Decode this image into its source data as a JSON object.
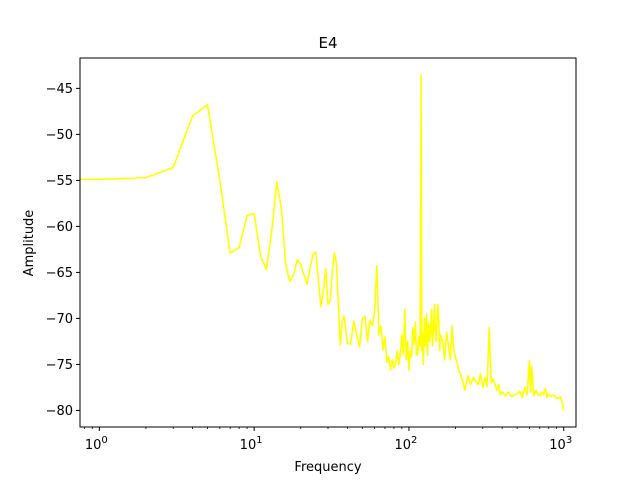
{
  "chart_data": {
    "type": "line",
    "title": "E4",
    "xlabel": "Frequency",
    "ylabel": "Amplitude",
    "xscale": "log",
    "xlim": [
      0.75,
      1200
    ],
    "ylim": [
      -81.8,
      -41.7
    ],
    "grid": false,
    "color": "#ffff00",
    "xticks": [
      {
        "value": 1,
        "label": "10",
        "exp": "0"
      },
      {
        "value": 10,
        "label": "10",
        "exp": "1"
      },
      {
        "value": 100,
        "label": "10",
        "exp": "2"
      },
      {
        "value": 1000,
        "label": "10",
        "exp": "3"
      }
    ],
    "yticks": [
      {
        "value": -45,
        "label": "−45"
      },
      {
        "value": -50,
        "label": "−50"
      },
      {
        "value": -55,
        "label": "−55"
      },
      {
        "value": -60,
        "label": "−60"
      },
      {
        "value": -65,
        "label": "−65"
      },
      {
        "value": -70,
        "label": "−70"
      },
      {
        "value": -75,
        "label": "−75"
      },
      {
        "value": -80,
        "label": "−80"
      }
    ],
    "series": [
      {
        "points": [
          [
            0.75,
            -54.9
          ],
          [
            1,
            -54.9
          ],
          [
            2,
            -54.7
          ],
          [
            3,
            -53.6
          ],
          [
            4,
            -48.0
          ],
          [
            5,
            -46.8
          ],
          [
            6,
            -55.0
          ],
          [
            7,
            -62.9
          ],
          [
            8,
            -62.3
          ],
          [
            9,
            -58.8
          ],
          [
            10,
            -58.6
          ],
          [
            11,
            -63.2
          ],
          [
            12,
            -64.7
          ],
          [
            13,
            -60.5
          ],
          [
            14,
            -55.2
          ],
          [
            15,
            -58.0
          ],
          [
            16,
            -64.2
          ],
          [
            17,
            -66.0
          ],
          [
            18,
            -65.2
          ],
          [
            19,
            -63.6
          ],
          [
            20,
            -64.2
          ],
          [
            21,
            -65.3
          ],
          [
            22,
            -66.3
          ],
          [
            23,
            -64.5
          ],
          [
            24,
            -63.0
          ],
          [
            25,
            -62.8
          ],
          [
            26,
            -65.9
          ],
          [
            27,
            -68.7
          ],
          [
            28,
            -67.0
          ],
          [
            29,
            -64.6
          ],
          [
            30,
            -68.5
          ],
          [
            31,
            -68.0
          ],
          [
            32,
            -65.0
          ],
          [
            33,
            -62.9
          ],
          [
            34,
            -64.0
          ],
          [
            35,
            -68.5
          ],
          [
            36,
            -72.9
          ],
          [
            37,
            -70.4
          ],
          [
            38,
            -69.7
          ],
          [
            39,
            -71.0
          ],
          [
            40,
            -72.7
          ],
          [
            42,
            -72.8
          ],
          [
            44,
            -70.3
          ],
          [
            46,
            -71.8
          ],
          [
            48,
            -73.1
          ],
          [
            50,
            -70.0
          ],
          [
            52,
            -69.8
          ],
          [
            54,
            -72.5
          ],
          [
            56,
            -70.2
          ],
          [
            58,
            -70.8
          ],
          [
            60,
            -69.3
          ],
          [
            62,
            -64.3
          ],
          [
            64,
            -71.8
          ],
          [
            66,
            -70.8
          ],
          [
            68,
            -73.4
          ],
          [
            70,
            -72.0
          ],
          [
            72,
            -74.8
          ],
          [
            74,
            -74.1
          ],
          [
            76,
            -75.6
          ],
          [
            78,
            -74.5
          ],
          [
            80,
            -75.4
          ],
          [
            82,
            -74.9
          ],
          [
            84,
            -73.5
          ],
          [
            86,
            -75.0
          ],
          [
            88,
            -73.8
          ],
          [
            90,
            -71.8
          ],
          [
            92,
            -73.9
          ],
          [
            94,
            -69.0
          ],
          [
            96,
            -74.5
          ],
          [
            98,
            -72.5
          ],
          [
            100,
            -75.6
          ],
          [
            102,
            -73.5
          ],
          [
            104,
            -74.2
          ],
          [
            106,
            -71.0
          ],
          [
            108,
            -72.8
          ],
          [
            110,
            -70.4
          ],
          [
            112,
            -74.0
          ],
          [
            114,
            -73.9
          ],
          [
            116,
            -72.0
          ],
          [
            118,
            -73.0
          ],
          [
            120,
            -43.5
          ],
          [
            121,
            -73.5
          ],
          [
            122,
            -71.5
          ],
          [
            124,
            -75.0
          ],
          [
            126,
            -70.0
          ],
          [
            128,
            -73.0
          ],
          [
            130,
            -69.5
          ],
          [
            132,
            -74.0
          ],
          [
            134,
            -70.5
          ],
          [
            136,
            -72.5
          ],
          [
            138,
            -71.5
          ],
          [
            140,
            -69.0
          ],
          [
            142,
            -73.0
          ],
          [
            144,
            -71.0
          ],
          [
            146,
            -68.5
          ],
          [
            148,
            -71.2
          ],
          [
            150,
            -72.5
          ],
          [
            152,
            -70.0
          ],
          [
            154,
            -68.5
          ],
          [
            156,
            -70.3
          ],
          [
            158,
            -73.5
          ],
          [
            160,
            -71.8
          ],
          [
            165,
            -72.5
          ],
          [
            170,
            -74.5
          ],
          [
            175,
            -71.5
          ],
          [
            180,
            -73.0
          ],
          [
            185,
            -74.5
          ],
          [
            190,
            -70.8
          ],
          [
            195,
            -73.5
          ],
          [
            200,
            -74.2
          ],
          [
            210,
            -75.6
          ],
          [
            220,
            -76.5
          ],
          [
            230,
            -77.8
          ],
          [
            240,
            -76.2
          ],
          [
            250,
            -77.2
          ],
          [
            260,
            -76.4
          ],
          [
            270,
            -76.8
          ],
          [
            280,
            -77.2
          ],
          [
            290,
            -76.0
          ],
          [
            300,
            -77.5
          ],
          [
            310,
            -76.4
          ],
          [
            320,
            -77.4
          ],
          [
            330,
            -71.0
          ],
          [
            340,
            -77.0
          ],
          [
            350,
            -76.6
          ],
          [
            360,
            -77.2
          ],
          [
            370,
            -77.8
          ],
          [
            380,
            -77.2
          ],
          [
            390,
            -78.3
          ],
          [
            400,
            -78.0
          ],
          [
            420,
            -78.4
          ],
          [
            440,
            -78.0
          ],
          [
            460,
            -78.5
          ],
          [
            480,
            -78.3
          ],
          [
            500,
            -78.2
          ],
          [
            520,
            -77.9
          ],
          [
            540,
            -78.6
          ],
          [
            560,
            -77.5
          ],
          [
            580,
            -78.3
          ],
          [
            600,
            -74.6
          ],
          [
            610,
            -78.0
          ],
          [
            620,
            -75.2
          ],
          [
            640,
            -78.4
          ],
          [
            660,
            -77.8
          ],
          [
            680,
            -78.2
          ],
          [
            700,
            -78.4
          ],
          [
            720,
            -78.0
          ],
          [
            740,
            -78.3
          ],
          [
            760,
            -77.6
          ],
          [
            780,
            -78.6
          ],
          [
            800,
            -78.2
          ],
          [
            830,
            -78.5
          ],
          [
            860,
            -78.3
          ],
          [
            890,
            -78.6
          ],
          [
            920,
            -78.7
          ],
          [
            950,
            -78.5
          ],
          [
            980,
            -79.2
          ],
          [
            1000,
            -80.0
          ]
        ]
      }
    ]
  }
}
